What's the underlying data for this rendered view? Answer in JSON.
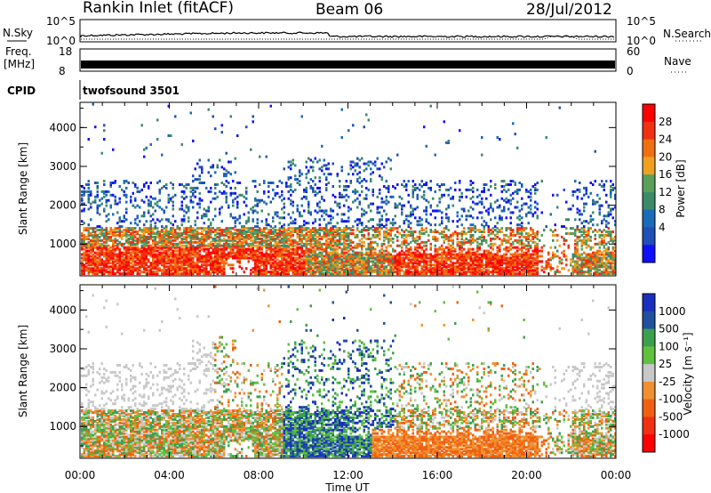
{
  "header": {
    "station": "Rankin Inlet (fitACF)",
    "beam": "Beam 06",
    "date": "28/Jul/2012"
  },
  "panels": {
    "nsky": {
      "label": "N.Sky",
      "ticks": [
        "10^5",
        "10^0"
      ]
    },
    "nsearch": {
      "label": "N.Search",
      "ticks": [
        "10^5",
        "10^0"
      ]
    },
    "freq": {
      "label_line1": "Freq.",
      "label_line2": "[MHz]",
      "ticks": [
        "18",
        "8"
      ]
    },
    "nave": {
      "label": "Nave",
      "ticks": [
        "60",
        "0"
      ]
    },
    "cpid": {
      "label": "CPID",
      "value": "twofsound 3501"
    }
  },
  "colors": {
    "power": [
      "#1010ff",
      "#1f4fb8",
      "#1a6bb8",
      "#3c8a6a",
      "#5aa05a",
      "#f0a020",
      "#f07010",
      "#f03010",
      "#ff0000"
    ],
    "velocity": [
      "#ff0000",
      "#f03010",
      "#f06010",
      "#f09030",
      "#c8c8c8",
      "#60c040",
      "#3aa050",
      "#2050a0",
      "#1a2fc0"
    ]
  },
  "chart_data": [
    {
      "type": "heatmap",
      "name": "power",
      "ylabel": "Slant Range [km]",
      "xlabel": "",
      "xticks": [
        "00:00",
        "04:00",
        "08:00",
        "12:00",
        "16:00",
        "20:00",
        "00:00"
      ],
      "yticks": [
        "1000",
        "2000",
        "3000",
        "4000"
      ],
      "ylim": [
        180,
        4650
      ],
      "xlim_hours": [
        0,
        24
      ],
      "colorbar_label": "Power [dB]",
      "colorbar_ticks": [
        "4",
        "8",
        "12",
        "16",
        "20",
        "24",
        "28"
      ],
      "colorbar_range": [
        0,
        32
      ]
    },
    {
      "type": "heatmap",
      "name": "velocity",
      "ylabel": "Slant Range [km]",
      "xlabel": "Time UT",
      "xticks": [
        "00:00",
        "04:00",
        "08:00",
        "12:00",
        "16:00",
        "20:00",
        "00:00"
      ],
      "yticks": [
        "1000",
        "2000",
        "3000",
        "4000"
      ],
      "ylim": [
        180,
        4650
      ],
      "xlim_hours": [
        0,
        24
      ],
      "colorbar_label": "Velocity [m s⁻¹]",
      "colorbar_ticks": [
        "1000",
        "500",
        "100",
        "25",
        "-25",
        "-100",
        "-500",
        "-1000"
      ]
    }
  ]
}
